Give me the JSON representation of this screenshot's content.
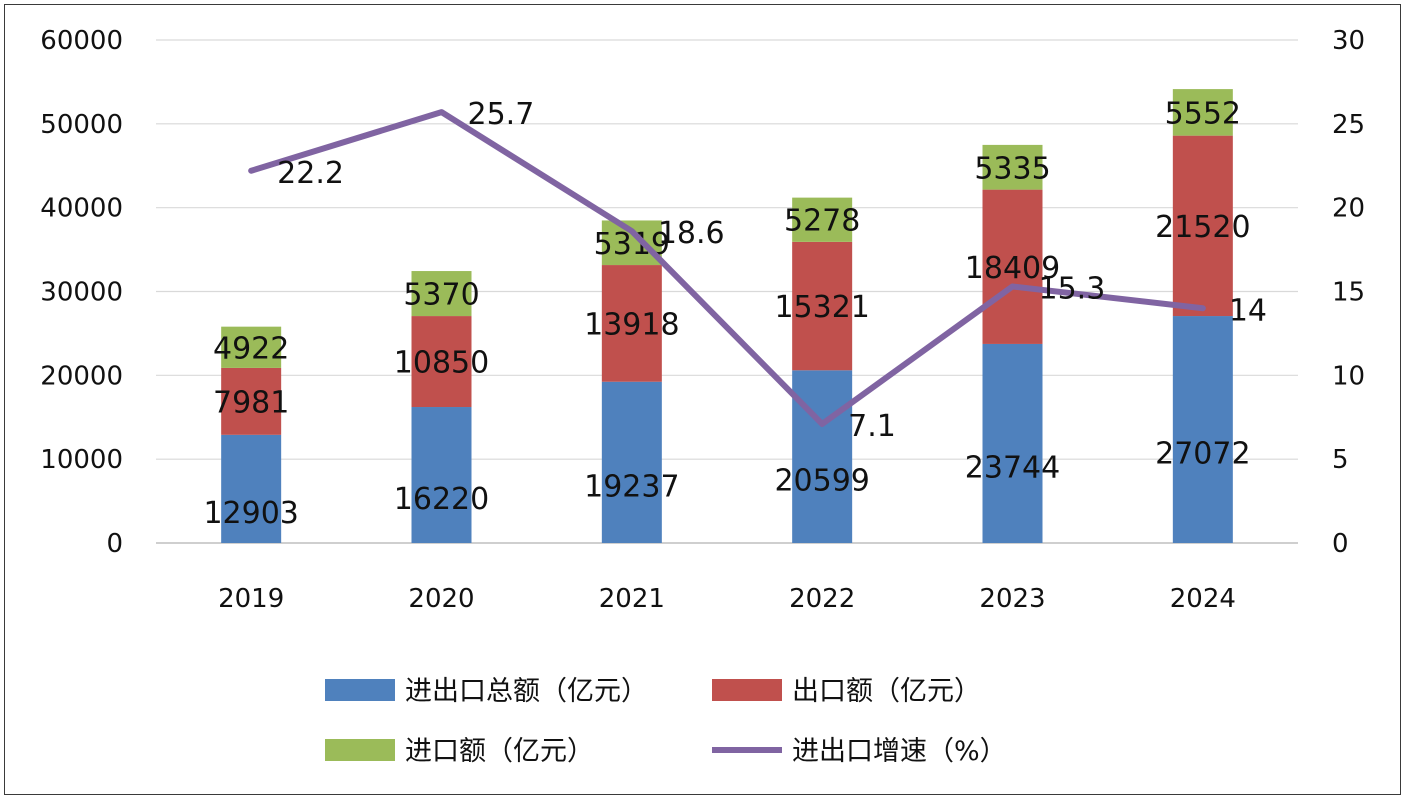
{
  "chart_data": {
    "type": "bar",
    "stacked": true,
    "categories": [
      "2019",
      "2020",
      "2021",
      "2022",
      "2023",
      "2024"
    ],
    "series": [
      {
        "name": "进出口总额（亿元）",
        "type": "bar",
        "axis": "left",
        "color": "#4F81BD",
        "values": [
          12903,
          16220,
          19237,
          20599,
          23744,
          27072
        ],
        "labels": [
          "12903",
          "16220",
          "19237",
          "20599",
          "23744",
          "27072"
        ]
      },
      {
        "name": "出口额（亿元）",
        "type": "bar",
        "axis": "left",
        "color": "#C0504D",
        "values": [
          7981,
          10850,
          13918,
          15321,
          18409,
          21520
        ],
        "labels": [
          "7981",
          "10850",
          "13918",
          "15321",
          "18409",
          "21520"
        ]
      },
      {
        "name": "进口额（亿元）",
        "type": "bar",
        "axis": "left",
        "color": "#9BBB59",
        "values": [
          4922,
          5370,
          5319,
          5278,
          5335,
          5552
        ],
        "labels": [
          "4922",
          "5370",
          "5319",
          "5278",
          "5335",
          "5552"
        ]
      },
      {
        "name": "进出口增速（%）",
        "type": "line",
        "axis": "right",
        "color": "#8064A2",
        "values": [
          22.2,
          25.7,
          18.6,
          7.1,
          15.3,
          14
        ],
        "labels": [
          "22.2",
          "25.7",
          "18.6",
          "7.1",
          "15.3",
          "14"
        ]
      }
    ],
    "y_left": {
      "ylim": [
        0,
        60000
      ],
      "ticks": [
        "0",
        "10000",
        "20000",
        "30000",
        "40000",
        "50000",
        "60000"
      ]
    },
    "y_right": {
      "ylim": [
        0,
        30
      ],
      "ticks": [
        "0",
        "5",
        "10",
        "15",
        "20",
        "25",
        "30"
      ]
    },
    "grid": "horizontal",
    "legend_position": "bottom",
    "title": "",
    "xlabel": "",
    "ylabel": ""
  }
}
